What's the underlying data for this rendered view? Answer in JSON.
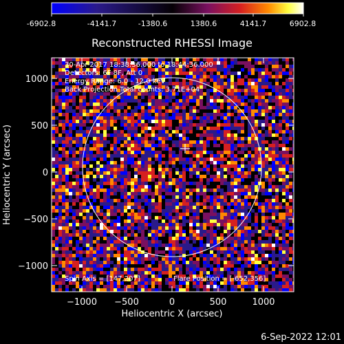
{
  "colorbar": {
    "ticks": [
      "-6902.8",
      "-4141.7",
      "-1380.6",
      "1380.6",
      "4141.7",
      "6902.8"
    ]
  },
  "title": "Reconstructed RHESSI Image",
  "info": {
    "time": "30-Apr-2017 18:38:36.000 to 18:44:36.000",
    "detectors": "Detectors: 6F 8F, Att 0",
    "energy": "Energy Range: 6.0 - 12.0 keV",
    "projection": "Back Projection    Total counts: 3.71E+04"
  },
  "footer_info": {
    "spin_axis": "Spin Axis = [147,207]",
    "flare_position": "Flare Position = [-652,356]"
  },
  "axes": {
    "x_label": "Heliocentric X (arcsec)",
    "y_label": "Heliocentric Y (arcsec)",
    "x_ticks": [
      "−1000",
      "−500",
      "0",
      "500",
      "1000"
    ],
    "y_ticks": [
      "1000",
      "500",
      "0",
      "−500",
      "−1000"
    ]
  },
  "timestamp": "6-Sep-2022 12:01",
  "style": {
    "background": "#000000",
    "foreground": "#ffffff",
    "colormap": [
      "#0000ff",
      "#2a1a8a",
      "#000000",
      "#7a1060",
      "#d62020",
      "#ff8a00",
      "#ffff40",
      "#ffffff"
    ]
  }
}
